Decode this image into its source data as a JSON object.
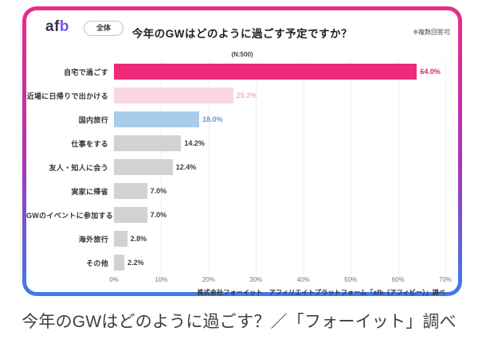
{
  "header": {
    "logo_letters": [
      "a",
      "f",
      "b"
    ],
    "badge_label": "全体",
    "title": "今年のGWはどのように過ごす予定ですか？",
    "sample_size": "(N:500)",
    "note": "※複数回答可"
  },
  "chart_data": {
    "type": "bar",
    "orientation": "horizontal",
    "title": "今年のGWはどのように過ごす予定ですか？",
    "categories": [
      "自宅で過ごす",
      "近場に日帰りで出かける",
      "国内旅行",
      "仕事をする",
      "友人・知人に会う",
      "実家に帰省",
      "GWのイベントに参加する",
      "海外旅行",
      "その他"
    ],
    "values": [
      64.0,
      25.2,
      18.0,
      14.2,
      12.4,
      7.0,
      7.0,
      2.8,
      2.2
    ],
    "value_labels": [
      "64.0%",
      "25.2%",
      "18.0%",
      "14.2%",
      "12.4%",
      "7.0%",
      "7.0%",
      "2.8%",
      "2.2%"
    ],
    "bar_colors": [
      "#ee2a7b",
      "#fbd5e5",
      "#a9cde9",
      "#d3d1d2",
      "#d3d1d2",
      "#d3d1d2",
      "#d3d1d2",
      "#d3d1d2",
      "#d3d1d2"
    ],
    "value_label_colors": [
      "#e0216f",
      "#f3aecd",
      "#5b9bd5",
      "#3c3c3c",
      "#3c3c3c",
      "#3c3c3c",
      "#3c3c3c",
      "#3c3c3c",
      "#3c3c3c"
    ],
    "x_ticks": [
      "0%",
      "10%",
      "20%",
      "30%",
      "40%",
      "50%",
      "60%",
      "70%"
    ],
    "xlim": [
      0,
      70
    ],
    "grid": true,
    "legend": false
  },
  "footer": {
    "source": "株式会社フォーイット　アフィリエイトプラットフォーム「afb（アフィビー）」調べ"
  },
  "caption": "今年のGWはどのように過ごす？／「フォーイット」調べ",
  "colors": {
    "accent_pink": "#ee2a7b",
    "light_pink": "#fbd5e5",
    "light_blue": "#a9cde9",
    "gray_bar": "#d3d1d2",
    "card_border_top": "#ec2a8a",
    "card_border_mid": "#aa35b8",
    "card_border_bottom": "#3d7be8"
  }
}
